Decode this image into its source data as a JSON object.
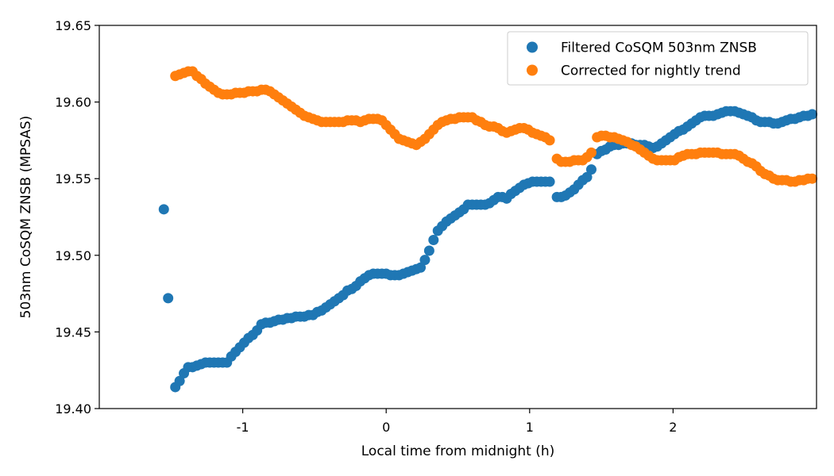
{
  "chart_data": {
    "type": "scatter",
    "title": "",
    "xlabel": "Local time from midnight (h)",
    "ylabel": "503nm CoSQM ZNSB (MPSAS)",
    "xlim": [
      -2.0,
      3.0
    ],
    "ylim": [
      19.4,
      19.65
    ],
    "xticks": [
      -1,
      0,
      1,
      2
    ],
    "xtick_labels": [
      "-1",
      "0",
      "1",
      "2"
    ],
    "yticks": [
      19.4,
      19.45,
      19.5,
      19.55,
      19.6,
      19.65
    ],
    "ytick_labels": [
      "19.40",
      "19.45",
      "19.50",
      "19.55",
      "19.60",
      "19.65"
    ],
    "grid": false,
    "legend_position": "top-right",
    "series": [
      {
        "name": "Filtered CoSQM 503nm ZNSB",
        "color": "#1f77b4",
        "points": [
          [
            -1.55,
            19.53
          ],
          [
            -1.52,
            19.472
          ],
          [
            -1.47,
            19.414
          ],
          [
            -1.44,
            19.418
          ],
          [
            -1.41,
            19.423
          ],
          [
            -1.38,
            19.427
          ],
          [
            -1.35,
            19.427
          ],
          [
            -1.32,
            19.428
          ],
          [
            -1.29,
            19.429
          ],
          [
            -1.26,
            19.43
          ],
          [
            -1.23,
            19.43
          ],
          [
            -1.2,
            19.43
          ],
          [
            -1.17,
            19.43
          ],
          [
            -1.14,
            19.43
          ],
          [
            -1.11,
            19.43
          ],
          [
            -1.08,
            19.434
          ],
          [
            -1.05,
            19.437
          ],
          [
            -1.02,
            19.44
          ],
          [
            -0.99,
            19.443
          ],
          [
            -0.96,
            19.446
          ],
          [
            -0.93,
            19.448
          ],
          [
            -0.9,
            19.451
          ],
          [
            -0.87,
            19.455
          ],
          [
            -0.84,
            19.456
          ],
          [
            -0.81,
            19.456
          ],
          [
            -0.78,
            19.457
          ],
          [
            -0.75,
            19.458
          ],
          [
            -0.72,
            19.458
          ],
          [
            -0.69,
            19.459
          ],
          [
            -0.66,
            19.459
          ],
          [
            -0.63,
            19.46
          ],
          [
            -0.6,
            19.46
          ],
          [
            -0.57,
            19.46
          ],
          [
            -0.54,
            19.461
          ],
          [
            -0.51,
            19.461
          ],
          [
            -0.48,
            19.463
          ],
          [
            -0.45,
            19.464
          ],
          [
            -0.42,
            19.466
          ],
          [
            -0.39,
            19.468
          ],
          [
            -0.36,
            19.47
          ],
          [
            -0.33,
            19.472
          ],
          [
            -0.3,
            19.474
          ],
          [
            -0.27,
            19.477
          ],
          [
            -0.24,
            19.478
          ],
          [
            -0.21,
            19.48
          ],
          [
            -0.18,
            19.483
          ],
          [
            -0.15,
            19.485
          ],
          [
            -0.12,
            19.487
          ],
          [
            -0.09,
            19.488
          ],
          [
            -0.06,
            19.488
          ],
          [
            -0.03,
            19.488
          ],
          [
            0.0,
            19.488
          ],
          [
            0.03,
            19.487
          ],
          [
            0.06,
            19.487
          ],
          [
            0.09,
            19.487
          ],
          [
            0.12,
            19.488
          ],
          [
            0.15,
            19.489
          ],
          [
            0.18,
            19.49
          ],
          [
            0.21,
            19.491
          ],
          [
            0.24,
            19.492
          ],
          [
            0.27,
            19.497
          ],
          [
            0.3,
            19.503
          ],
          [
            0.33,
            19.51
          ],
          [
            0.36,
            19.516
          ],
          [
            0.39,
            19.519
          ],
          [
            0.42,
            19.522
          ],
          [
            0.45,
            19.524
          ],
          [
            0.48,
            19.526
          ],
          [
            0.51,
            19.528
          ],
          [
            0.54,
            19.53
          ],
          [
            0.57,
            19.533
          ],
          [
            0.6,
            19.533
          ],
          [
            0.63,
            19.533
          ],
          [
            0.66,
            19.533
          ],
          [
            0.69,
            19.533
          ],
          [
            0.72,
            19.534
          ],
          [
            0.75,
            19.536
          ],
          [
            0.78,
            19.538
          ],
          [
            0.81,
            19.538
          ],
          [
            0.84,
            19.537
          ],
          [
            0.87,
            19.54
          ],
          [
            0.9,
            19.542
          ],
          [
            0.93,
            19.544
          ],
          [
            0.96,
            19.546
          ],
          [
            0.99,
            19.547
          ],
          [
            1.02,
            19.548
          ],
          [
            1.05,
            19.548
          ],
          [
            1.08,
            19.548
          ],
          [
            1.11,
            19.548
          ],
          [
            1.14,
            19.548
          ],
          [
            1.19,
            19.538
          ],
          [
            1.22,
            19.538
          ],
          [
            1.25,
            19.539
          ],
          [
            1.28,
            19.541
          ],
          [
            1.31,
            19.543
          ],
          [
            1.34,
            19.546
          ],
          [
            1.37,
            19.549
          ],
          [
            1.4,
            19.551
          ],
          [
            1.43,
            19.556
          ],
          [
            1.47,
            19.566
          ],
          [
            1.5,
            19.568
          ],
          [
            1.53,
            19.569
          ],
          [
            1.56,
            19.571
          ],
          [
            1.59,
            19.572
          ],
          [
            1.62,
            19.572
          ],
          [
            1.65,
            19.573
          ],
          [
            1.68,
            19.573
          ],
          [
            1.71,
            19.573
          ],
          [
            1.74,
            19.572
          ],
          [
            1.77,
            19.572
          ],
          [
            1.8,
            19.572
          ],
          [
            1.83,
            19.571
          ],
          [
            1.86,
            19.57
          ],
          [
            1.89,
            19.571
          ],
          [
            1.92,
            19.573
          ],
          [
            1.95,
            19.575
          ],
          [
            1.98,
            19.577
          ],
          [
            2.01,
            19.579
          ],
          [
            2.04,
            19.581
          ],
          [
            2.07,
            19.582
          ],
          [
            2.1,
            19.584
          ],
          [
            2.13,
            19.586
          ],
          [
            2.16,
            19.588
          ],
          [
            2.19,
            19.59
          ],
          [
            2.22,
            19.591
          ],
          [
            2.25,
            19.591
          ],
          [
            2.28,
            19.591
          ],
          [
            2.31,
            19.592
          ],
          [
            2.34,
            19.593
          ],
          [
            2.37,
            19.594
          ],
          [
            2.4,
            19.594
          ],
          [
            2.43,
            19.594
          ],
          [
            2.46,
            19.593
          ],
          [
            2.49,
            19.592
          ],
          [
            2.52,
            19.591
          ],
          [
            2.55,
            19.59
          ],
          [
            2.58,
            19.588
          ],
          [
            2.61,
            19.587
          ],
          [
            2.64,
            19.587
          ],
          [
            2.67,
            19.587
          ],
          [
            2.7,
            19.586
          ],
          [
            2.73,
            19.586
          ],
          [
            2.76,
            19.587
          ],
          [
            2.79,
            19.588
          ],
          [
            2.82,
            19.589
          ],
          [
            2.85,
            19.589
          ],
          [
            2.88,
            19.59
          ],
          [
            2.91,
            19.591
          ],
          [
            2.94,
            19.591
          ],
          [
            2.97,
            19.592
          ]
        ]
      },
      {
        "name": "Corrected for nightly trend",
        "color": "#ff7f0e",
        "points": [
          [
            -1.47,
            19.617
          ],
          [
            -1.44,
            19.618
          ],
          [
            -1.41,
            19.619
          ],
          [
            -1.38,
            19.62
          ],
          [
            -1.35,
            19.62
          ],
          [
            -1.32,
            19.617
          ],
          [
            -1.29,
            19.615
          ],
          [
            -1.26,
            19.612
          ],
          [
            -1.23,
            19.61
          ],
          [
            -1.2,
            19.608
          ],
          [
            -1.17,
            19.606
          ],
          [
            -1.14,
            19.605
          ],
          [
            -1.11,
            19.605
          ],
          [
            -1.08,
            19.605
          ],
          [
            -1.05,
            19.606
          ],
          [
            -1.02,
            19.606
          ],
          [
            -0.99,
            19.606
          ],
          [
            -0.96,
            19.607
          ],
          [
            -0.93,
            19.607
          ],
          [
            -0.9,
            19.607
          ],
          [
            -0.87,
            19.608
          ],
          [
            -0.84,
            19.608
          ],
          [
            -0.81,
            19.607
          ],
          [
            -0.78,
            19.605
          ],
          [
            -0.75,
            19.603
          ],
          [
            -0.72,
            19.601
          ],
          [
            -0.69,
            19.599
          ],
          [
            -0.66,
            19.597
          ],
          [
            -0.63,
            19.595
          ],
          [
            -0.6,
            19.593
          ],
          [
            -0.57,
            19.591
          ],
          [
            -0.54,
            19.59
          ],
          [
            -0.51,
            19.589
          ],
          [
            -0.48,
            19.588
          ],
          [
            -0.45,
            19.587
          ],
          [
            -0.42,
            19.587
          ],
          [
            -0.39,
            19.587
          ],
          [
            -0.36,
            19.587
          ],
          [
            -0.33,
            19.587
          ],
          [
            -0.3,
            19.587
          ],
          [
            -0.27,
            19.588
          ],
          [
            -0.24,
            19.588
          ],
          [
            -0.21,
            19.588
          ],
          [
            -0.18,
            19.587
          ],
          [
            -0.15,
            19.588
          ],
          [
            -0.12,
            19.589
          ],
          [
            -0.09,
            19.589
          ],
          [
            -0.06,
            19.589
          ],
          [
            -0.03,
            19.588
          ],
          [
            0.0,
            19.585
          ],
          [
            0.03,
            19.582
          ],
          [
            0.06,
            19.579
          ],
          [
            0.09,
            19.576
          ],
          [
            0.12,
            19.575
          ],
          [
            0.15,
            19.574
          ],
          [
            0.18,
            19.573
          ],
          [
            0.21,
            19.572
          ],
          [
            0.24,
            19.574
          ],
          [
            0.27,
            19.576
          ],
          [
            0.3,
            19.579
          ],
          [
            0.33,
            19.582
          ],
          [
            0.36,
            19.585
          ],
          [
            0.39,
            19.587
          ],
          [
            0.42,
            19.588
          ],
          [
            0.45,
            19.589
          ],
          [
            0.48,
            19.589
          ],
          [
            0.51,
            19.59
          ],
          [
            0.54,
            19.59
          ],
          [
            0.57,
            19.59
          ],
          [
            0.6,
            19.59
          ],
          [
            0.63,
            19.588
          ],
          [
            0.66,
            19.587
          ],
          [
            0.69,
            19.585
          ],
          [
            0.72,
            19.584
          ],
          [
            0.75,
            19.584
          ],
          [
            0.78,
            19.583
          ],
          [
            0.81,
            19.581
          ],
          [
            0.84,
            19.58
          ],
          [
            0.87,
            19.581
          ],
          [
            0.9,
            19.582
          ],
          [
            0.93,
            19.583
          ],
          [
            0.96,
            19.583
          ],
          [
            0.99,
            19.582
          ],
          [
            1.02,
            19.58
          ],
          [
            1.05,
            19.579
          ],
          [
            1.08,
            19.578
          ],
          [
            1.11,
            19.577
          ],
          [
            1.14,
            19.575
          ],
          [
            1.19,
            19.563
          ],
          [
            1.22,
            19.561
          ],
          [
            1.25,
            19.561
          ],
          [
            1.28,
            19.561
          ],
          [
            1.31,
            19.562
          ],
          [
            1.34,
            19.562
          ],
          [
            1.37,
            19.562
          ],
          [
            1.4,
            19.564
          ],
          [
            1.43,
            19.567
          ],
          [
            1.47,
            19.577
          ],
          [
            1.5,
            19.578
          ],
          [
            1.53,
            19.578
          ],
          [
            1.56,
            19.577
          ],
          [
            1.59,
            19.577
          ],
          [
            1.62,
            19.576
          ],
          [
            1.65,
            19.575
          ],
          [
            1.68,
            19.574
          ],
          [
            1.71,
            19.572
          ],
          [
            1.74,
            19.571
          ],
          [
            1.77,
            19.569
          ],
          [
            1.8,
            19.567
          ],
          [
            1.83,
            19.565
          ],
          [
            1.86,
            19.563
          ],
          [
            1.89,
            19.562
          ],
          [
            1.92,
            19.562
          ],
          [
            1.95,
            19.562
          ],
          [
            1.98,
            19.562
          ],
          [
            2.01,
            19.562
          ],
          [
            2.04,
            19.564
          ],
          [
            2.07,
            19.565
          ],
          [
            2.1,
            19.566
          ],
          [
            2.13,
            19.566
          ],
          [
            2.16,
            19.566
          ],
          [
            2.19,
            19.567
          ],
          [
            2.22,
            19.567
          ],
          [
            2.25,
            19.567
          ],
          [
            2.28,
            19.567
          ],
          [
            2.31,
            19.567
          ],
          [
            2.34,
            19.566
          ],
          [
            2.37,
            19.566
          ],
          [
            2.4,
            19.566
          ],
          [
            2.43,
            19.566
          ],
          [
            2.46,
            19.565
          ],
          [
            2.49,
            19.563
          ],
          [
            2.52,
            19.561
          ],
          [
            2.55,
            19.56
          ],
          [
            2.58,
            19.558
          ],
          [
            2.61,
            19.555
          ],
          [
            2.64,
            19.553
          ],
          [
            2.67,
            19.552
          ],
          [
            2.7,
            19.55
          ],
          [
            2.73,
            19.549
          ],
          [
            2.76,
            19.549
          ],
          [
            2.79,
            19.549
          ],
          [
            2.82,
            19.548
          ],
          [
            2.85,
            19.548
          ],
          [
            2.88,
            19.549
          ],
          [
            2.91,
            19.549
          ],
          [
            2.94,
            19.55
          ],
          [
            2.97,
            19.55
          ]
        ]
      }
    ]
  }
}
